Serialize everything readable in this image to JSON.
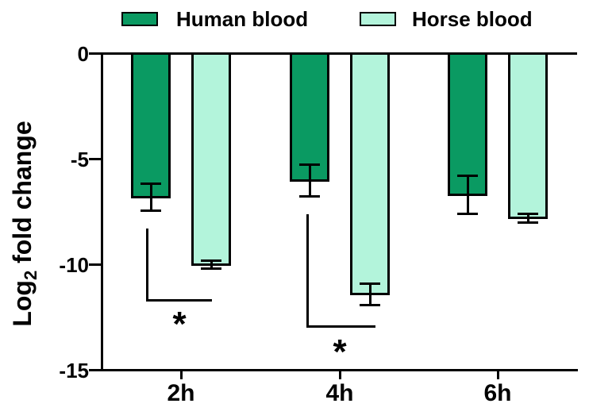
{
  "figure": {
    "y_axis_title": {
      "prefix": "Log",
      "subscript": "2",
      "suffix": " fold change"
    }
  },
  "chart_data": {
    "type": "bar",
    "title": "",
    "xlabel": "",
    "ylabel": "Log2 fold change",
    "categories": [
      "2h",
      "4h",
      "6h"
    ],
    "series": [
      {
        "name": "Human blood",
        "color": "#0a9a62",
        "values": [
          -6.8,
          -6.0,
          -6.7
        ],
        "errors": [
          0.65,
          0.75,
          0.9
        ]
      },
      {
        "name": "Horse blood",
        "color": "#b3f4db",
        "values": [
          -10.0,
          -11.4,
          -7.8
        ],
        "errors": [
          0.2,
          0.5,
          0.2
        ]
      }
    ],
    "ylim": [
      -15,
      0
    ],
    "yticks": [
      0,
      -5,
      -10,
      -15
    ],
    "ytick_labels": [
      "0",
      "-5",
      "-10",
      "-15"
    ],
    "grid": false,
    "error_bars": true,
    "legend_position": "top",
    "annotations": [
      {
        "category": "2h",
        "symbol": "*",
        "comparison": "Human blood vs Horse blood"
      },
      {
        "category": "4h",
        "symbol": "*",
        "comparison": "Human blood vs Horse blood"
      }
    ]
  }
}
